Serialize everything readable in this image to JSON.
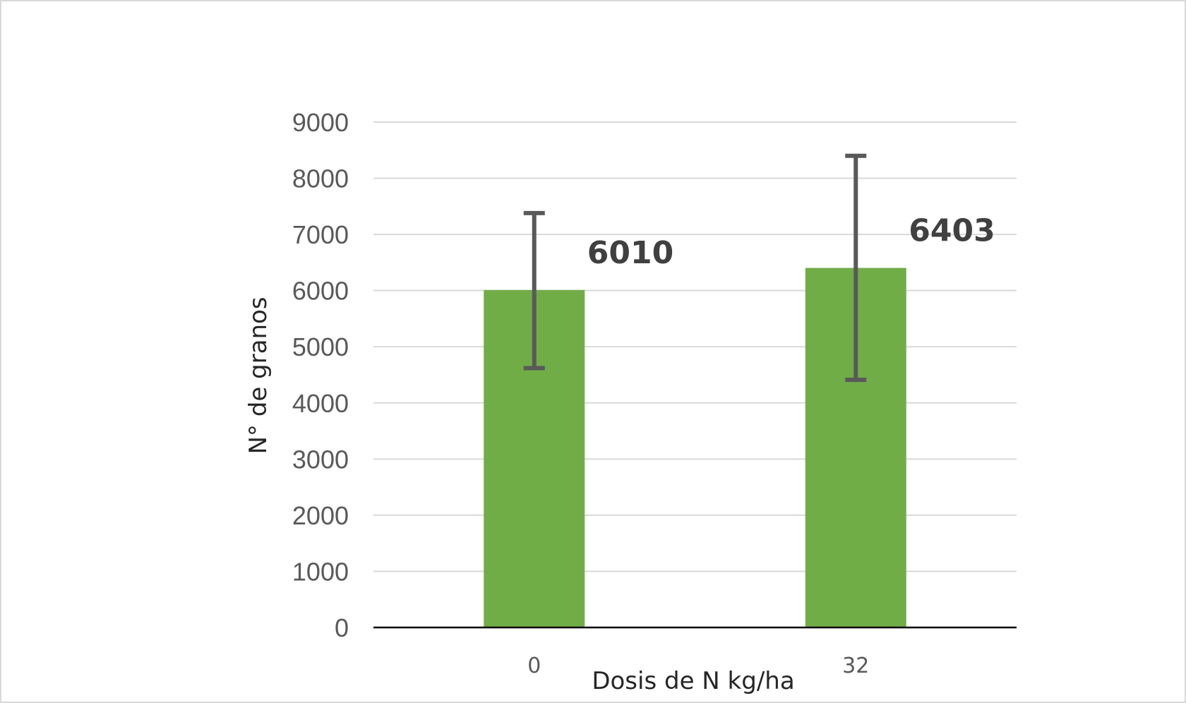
{
  "chart_data": {
    "type": "bar",
    "categories": [
      "0",
      "32"
    ],
    "values": [
      6010,
      6403
    ],
    "error_bars": [
      {
        "low": 4620,
        "high": 7380
      },
      {
        "low": 4410,
        "high": 8400
      }
    ],
    "data_labels": [
      "6010",
      "6403"
    ],
    "xlabel": "Dosis de N kg/ha",
    "ylabel": "N° de granos",
    "ylim": [
      0,
      9000
    ],
    "yticks": [
      0,
      1000,
      2000,
      3000,
      4000,
      5000,
      6000,
      7000,
      8000,
      9000
    ],
    "ytick_labels": [
      "0",
      "1000",
      "2000",
      "3000",
      "4000",
      "5000",
      "6000",
      "7000",
      "8000",
      "9000"
    ],
    "grid": true,
    "legend": "none",
    "colors": {
      "bar": "#70ad47",
      "error_bar": "#595959",
      "grid": "#d9d9d9",
      "axis": "#000000"
    }
  }
}
